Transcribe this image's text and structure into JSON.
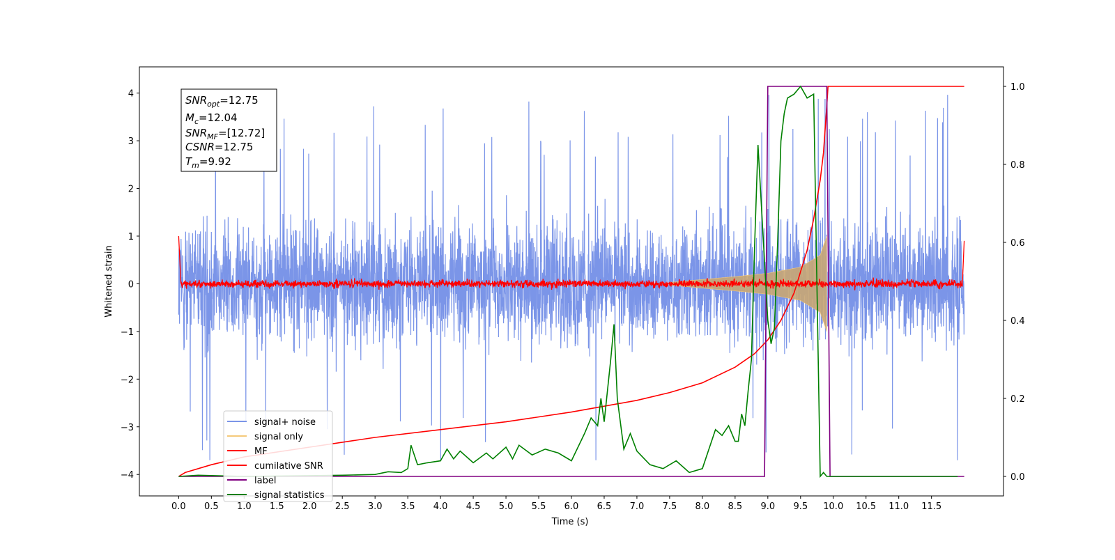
{
  "chart_data": {
    "type": "line",
    "xlabel": "Time (s)",
    "ylabel": "Whitened strain",
    "xlim": [
      -0.6,
      12.6
    ],
    "ylim": [
      -4.45,
      4.55
    ],
    "y2lim": [
      -0.05,
      1.05
    ],
    "x_ticks": [
      "0.0",
      "0.5",
      "1.0",
      "1.5",
      "2.0",
      "2.5",
      "3.0",
      "3.5",
      "4.0",
      "4.5",
      "5.0",
      "5.5",
      "6.0",
      "6.5",
      "7.0",
      "7.5",
      "8.0",
      "8.5",
      "9.0",
      "9.5",
      "10.0",
      "10.5",
      "11.0",
      "11.5"
    ],
    "y_ticks": [
      "−4",
      "−3",
      "−2",
      "−1",
      "0",
      "1",
      "2",
      "3",
      "4"
    ],
    "y2_ticks": [
      "0.0",
      "0.2",
      "0.4",
      "0.6",
      "0.8",
      "1.0"
    ],
    "info_box": {
      "snr_opt": {
        "sym": "SNR",
        "sub": "opt",
        "val": "=12.75"
      },
      "mc": {
        "sym": "M",
        "sub": "c",
        "val": "=12.04"
      },
      "snr_mf": {
        "sym": "SNR",
        "sub": "MF",
        "val": "=[12.72]"
      },
      "csnr": {
        "sym": "CSNR",
        "sub": "",
        "val": "=12.75"
      },
      "tm": {
        "sym": "T",
        "sub": "m",
        "val": "=9.92"
      }
    },
    "legend": {
      "placement": "lower-left",
      "items": [
        {
          "label": "signal+ noise",
          "color": "#7b95e8"
        },
        {
          "label": "signal only",
          "color": "#f5c97a"
        },
        {
          "label": "MF",
          "color": "#ff0000"
        },
        {
          "label": "cumilative SNR",
          "color": "#ff0000"
        },
        {
          "label": "label",
          "color": "#800080"
        },
        {
          "label": "signal statistics",
          "color": "#008000"
        }
      ]
    },
    "series": [
      {
        "name": "signal+ noise",
        "axis": "left",
        "t_range": [
          0,
          12
        ],
        "band_min": -2.3,
        "band_max": 2.3,
        "spike_max": 4.15,
        "spike_min": -3.7
      },
      {
        "name": "signal only",
        "axis": "left",
        "envelope": {
          "t": [
            7.5,
            8.5,
            9.0,
            9.5,
            9.8,
            9.9
          ],
          "amp": [
            0.03,
            0.15,
            0.22,
            0.35,
            0.6,
            1.0
          ]
        }
      },
      {
        "name": "MF",
        "axis": "left",
        "t_range": [
          0,
          12
        ],
        "level": 0.0,
        "noise_amp": 0.12,
        "start_value": 1.0,
        "end_value": 0.9
      },
      {
        "name": "cumilative SNR",
        "axis": "right",
        "t": [
          0,
          0.1,
          0.5,
          1,
          2,
          3,
          4,
          5,
          6,
          6.5,
          7,
          7.5,
          8,
          8.5,
          8.8,
          9.0,
          9.2,
          9.4,
          9.6,
          9.7,
          9.8,
          9.85,
          9.9,
          9.92,
          12.0
        ],
        "values": [
          0.0,
          0.01,
          0.03,
          0.05,
          0.075,
          0.1,
          0.12,
          0.14,
          0.165,
          0.18,
          0.195,
          0.215,
          0.24,
          0.28,
          0.315,
          0.35,
          0.4,
          0.47,
          0.58,
          0.66,
          0.76,
          0.83,
          0.95,
          1.0,
          1.0
        ]
      },
      {
        "name": "label",
        "axis": "right",
        "t": [
          0,
          8.95,
          9.0,
          9.9,
          9.95,
          12.0
        ],
        "values": [
          0,
          0,
          1,
          1,
          0,
          0
        ]
      },
      {
        "name": "signal statistics",
        "axis": "right",
        "t": [
          0,
          0.3,
          1,
          2,
          2.5,
          3.0,
          3.2,
          3.4,
          3.5,
          3.55,
          3.65,
          3.8,
          4.0,
          4.1,
          4.2,
          4.3,
          4.5,
          4.7,
          4.8,
          5.0,
          5.1,
          5.2,
          5.4,
          5.6,
          5.8,
          6.0,
          6.2,
          6.3,
          6.4,
          6.45,
          6.5,
          6.6,
          6.65,
          6.7,
          6.8,
          6.9,
          7.0,
          7.2,
          7.4,
          7.6,
          7.8,
          8.0,
          8.1,
          8.2,
          8.3,
          8.4,
          8.5,
          8.55,
          8.6,
          8.65,
          8.7,
          8.75,
          8.8,
          8.85,
          8.9,
          8.95,
          9.0,
          9.05,
          9.1,
          9.15,
          9.2,
          9.25,
          9.3,
          9.4,
          9.5,
          9.6,
          9.7,
          9.8,
          9.85,
          9.9,
          9.95,
          10.0,
          11.0,
          11.9
        ],
        "values": [
          0.0,
          0.003,
          0.0,
          0.002,
          0.003,
          0.005,
          0.012,
          0.01,
          0.02,
          0.08,
          0.03,
          0.035,
          0.04,
          0.07,
          0.045,
          0.065,
          0.035,
          0.06,
          0.045,
          0.075,
          0.045,
          0.08,
          0.055,
          0.07,
          0.06,
          0.04,
          0.11,
          0.15,
          0.13,
          0.2,
          0.14,
          0.3,
          0.39,
          0.2,
          0.07,
          0.11,
          0.065,
          0.03,
          0.02,
          0.04,
          0.01,
          0.02,
          0.07,
          0.12,
          0.105,
          0.13,
          0.09,
          0.09,
          0.16,
          0.13,
          0.22,
          0.3,
          0.6,
          0.85,
          0.7,
          0.55,
          0.4,
          0.34,
          0.38,
          0.6,
          0.86,
          0.93,
          0.97,
          0.98,
          1.0,
          0.97,
          0.98,
          0.0,
          0.01,
          0.0,
          0.0,
          0.0,
          0.0,
          0.0
        ]
      }
    ]
  }
}
